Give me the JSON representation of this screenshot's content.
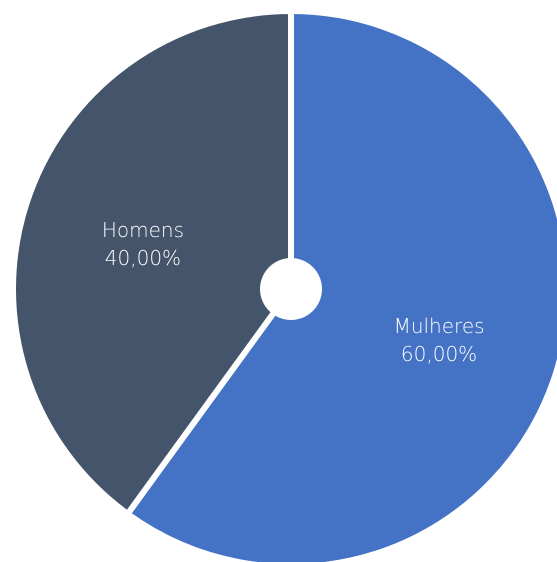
{
  "chart_data": {
    "type": "pie",
    "slices": [
      {
        "label": "Mulheres",
        "value": 60.0,
        "display": "60,00%",
        "color": "#4472C4"
      },
      {
        "label": "Homens",
        "value": 40.0,
        "display": "40,00%",
        "color": "#44546A"
      }
    ],
    "start_angle_deg": 0,
    "direction": "clockwise",
    "background": "#ffffff"
  }
}
